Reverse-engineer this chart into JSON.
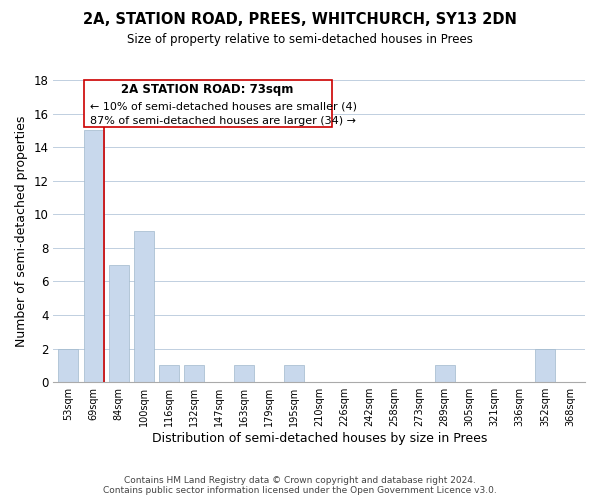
{
  "title": "2A, STATION ROAD, PREES, WHITCHURCH, SY13 2DN",
  "subtitle": "Size of property relative to semi-detached houses in Prees",
  "xlabel": "Distribution of semi-detached houses by size in Prees",
  "ylabel": "Number of semi-detached properties",
  "footer_line1": "Contains HM Land Registry data © Crown copyright and database right 2024.",
  "footer_line2": "Contains public sector information licensed under the Open Government Licence v3.0.",
  "bin_labels": [
    "53sqm",
    "69sqm",
    "84sqm",
    "100sqm",
    "116sqm",
    "132sqm",
    "147sqm",
    "163sqm",
    "179sqm",
    "195sqm",
    "210sqm",
    "226sqm",
    "242sqm",
    "258sqm",
    "273sqm",
    "289sqm",
    "305sqm",
    "321sqm",
    "336sqm",
    "352sqm",
    "368sqm"
  ],
  "bin_values": [
    2,
    15,
    7,
    9,
    1,
    1,
    0,
    1,
    0,
    1,
    0,
    0,
    0,
    0,
    0,
    1,
    0,
    0,
    0,
    2,
    0
  ],
  "bar_color": "#c8d8ec",
  "bar_edge_color": "#a0b8cc",
  "marker_line_color": "#cc0000",
  "marker_bin_index": 1,
  "ylim": [
    0,
    18
  ],
  "yticks": [
    0,
    2,
    4,
    6,
    8,
    10,
    12,
    14,
    16,
    18
  ],
  "annotation_title": "2A STATION ROAD: 73sqm",
  "annotation_line1": "← 10% of semi-detached houses are smaller (4)",
  "annotation_line2": "87% of semi-detached houses are larger (34) →",
  "background_color": "#ffffff",
  "grid_color": "#c0cfe0"
}
